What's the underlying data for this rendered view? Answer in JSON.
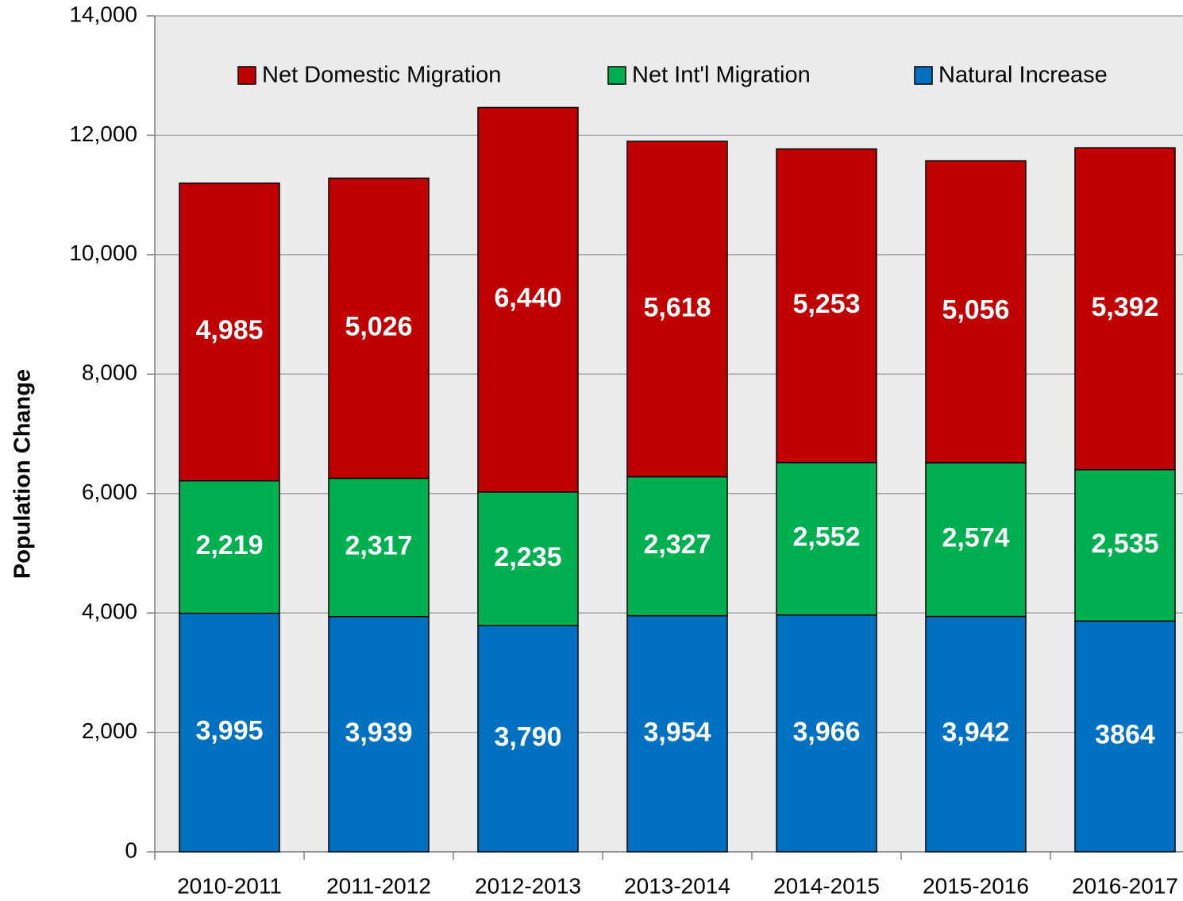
{
  "chart_data": {
    "type": "stacked_bar",
    "y_label": "Population Change",
    "categories": [
      "2010-2011",
      "2011-2012",
      "2012-2013",
      "2013-2014",
      "2014-2015",
      "2015-2016",
      "2016-2017"
    ],
    "series": [
      {
        "name": "Natural Increase",
        "color": "#0070c0",
        "values": [
          3995,
          3939,
          3790,
          3954,
          3966,
          3942,
          3864
        ],
        "value_labels": [
          "3,995",
          "3,939",
          "3,790",
          "3,954",
          "3,966",
          "3,942",
          "3864"
        ]
      },
      {
        "name": "Net Int'l Migration",
        "color": "#00b050",
        "values": [
          2219,
          2317,
          2235,
          2327,
          2552,
          2574,
          2535
        ],
        "value_labels": [
          "2,219",
          "2,317",
          "2,235",
          "2,327",
          "2,552",
          "2,574",
          "2,535"
        ]
      },
      {
        "name": "Net Domestic Migration",
        "color": "#c00000",
        "values": [
          4985,
          5026,
          6440,
          5618,
          5253,
          5056,
          5392
        ],
        "value_labels": [
          "4,985",
          "5,026",
          "6,440",
          "5,618",
          "5,253",
          "5,056",
          "5,392"
        ]
      }
    ],
    "ylim": [
      0,
      14000
    ],
    "yticks": [
      0,
      {
        "value": 2000,
        "label": "2,000"
      },
      {
        "value": 4000,
        "label": "4,000"
      },
      {
        "value": 6000,
        "label": "6,000"
      },
      {
        "value": 8000,
        "label": "8,000"
      },
      {
        "value": 10000,
        "label": "10,000"
      },
      {
        "value": 12000,
        "label": "12,000"
      },
      {
        "value": 14000,
        "label": "14,000"
      }
    ],
    "grid": true,
    "legend": "top"
  }
}
